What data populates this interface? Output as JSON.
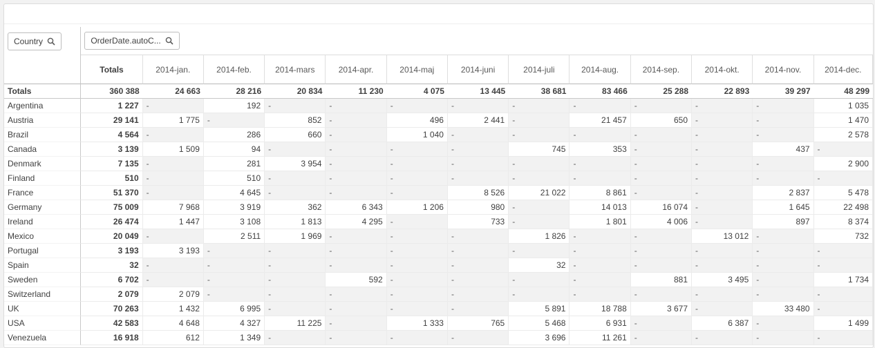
{
  "filters": {
    "row_dimension": "Country",
    "column_dimension": "OrderDate.autoC..."
  },
  "columns": {
    "totals_label": "Totals",
    "months": [
      "2014-jan.",
      "2014-feb.",
      "2014-mars",
      "2014-apr.",
      "2014-maj",
      "2014-juni",
      "2014-juli",
      "2014-aug.",
      "2014-sep.",
      "2014-okt.",
      "2014-nov.",
      "2014-dec."
    ]
  },
  "totals_row": {
    "label": "Totals",
    "total": "360 388",
    "values": [
      "24 663",
      "28 216",
      "20 834",
      "11 230",
      "4 075",
      "13 445",
      "38 681",
      "83 466",
      "25 288",
      "22 893",
      "39 297",
      "48 299"
    ]
  },
  "rows": [
    {
      "country": "Argentina",
      "total": "1 227",
      "values": [
        "-",
        "192",
        "-",
        "-",
        "-",
        "-",
        "-",
        "-",
        "-",
        "-",
        "-",
        "1 035"
      ]
    },
    {
      "country": "Austria",
      "total": "29 141",
      "values": [
        "1 775",
        "-",
        "852",
        "-",
        "496",
        "2 441",
        "-",
        "21 457",
        "650",
        "-",
        "-",
        "1 470"
      ]
    },
    {
      "country": "Brazil",
      "total": "4 564",
      "values": [
        "-",
        "286",
        "660",
        "-",
        "1 040",
        "-",
        "-",
        "-",
        "-",
        "-",
        "-",
        "2 578"
      ]
    },
    {
      "country": "Canada",
      "total": "3 139",
      "values": [
        "1 509",
        "94",
        "-",
        "-",
        "-",
        "-",
        "745",
        "353",
        "-",
        "-",
        "437",
        "-"
      ]
    },
    {
      "country": "Denmark",
      "total": "7 135",
      "values": [
        "-",
        "281",
        "3 954",
        "-",
        "-",
        "-",
        "-",
        "-",
        "-",
        "-",
        "-",
        "2 900"
      ]
    },
    {
      "country": "Finland",
      "total": "510",
      "values": [
        "-",
        "510",
        "-",
        "-",
        "-",
        "-",
        "-",
        "-",
        "-",
        "-",
        "-",
        "-"
      ]
    },
    {
      "country": "France",
      "total": "51 370",
      "values": [
        "-",
        "4 645",
        "-",
        "-",
        "-",
        "8 526",
        "21 022",
        "8 861",
        "-",
        "-",
        "2 837",
        "5 478"
      ]
    },
    {
      "country": "Germany",
      "total": "75 009",
      "values": [
        "7 968",
        "3 919",
        "362",
        "6 343",
        "1 206",
        "980",
        "-",
        "14 013",
        "16 074",
        "-",
        "1 645",
        "22 498"
      ]
    },
    {
      "country": "Ireland",
      "total": "26 474",
      "values": [
        "1 447",
        "3 108",
        "1 813",
        "4 295",
        "-",
        "733",
        "-",
        "1 801",
        "4 006",
        "-",
        "897",
        "8 374"
      ]
    },
    {
      "country": "Mexico",
      "total": "20 049",
      "values": [
        "-",
        "2 511",
        "1 969",
        "-",
        "-",
        "-",
        "1 826",
        "-",
        "-",
        "13 012",
        "-",
        "732"
      ]
    },
    {
      "country": "Portugal",
      "total": "3 193",
      "values": [
        "3 193",
        "-",
        "-",
        "-",
        "-",
        "-",
        "-",
        "-",
        "-",
        "-",
        "-",
        "-"
      ]
    },
    {
      "country": "Spain",
      "total": "32",
      "values": [
        "-",
        "-",
        "-",
        "-",
        "-",
        "-",
        "32",
        "-",
        "-",
        "-",
        "-",
        "-"
      ]
    },
    {
      "country": "Sweden",
      "total": "6 702",
      "values": [
        "-",
        "-",
        "-",
        "592",
        "-",
        "-",
        "-",
        "-",
        "881",
        "3 495",
        "-",
        "1 734"
      ]
    },
    {
      "country": "Switzerland",
      "total": "2 079",
      "values": [
        "2 079",
        "-",
        "-",
        "-",
        "-",
        "-",
        "-",
        "-",
        "-",
        "-",
        "-",
        "-"
      ]
    },
    {
      "country": "UK",
      "total": "70 263",
      "values": [
        "1 432",
        "6 995",
        "-",
        "-",
        "-",
        "-",
        "5 891",
        "18 788",
        "3 677",
        "-",
        "33 480",
        "-"
      ]
    },
    {
      "country": "USA",
      "total": "42 583",
      "values": [
        "4 648",
        "4 327",
        "11 225",
        "-",
        "1 333",
        "765",
        "5 468",
        "6 931",
        "-",
        "6 387",
        "-",
        "1 499"
      ]
    },
    {
      "country": "Venezuela",
      "total": "16 918",
      "values": [
        "612",
        "1 349",
        "-",
        "-",
        "-",
        "-",
        "3 696",
        "11 261",
        "-",
        "-",
        "-",
        "-"
      ]
    }
  ]
}
